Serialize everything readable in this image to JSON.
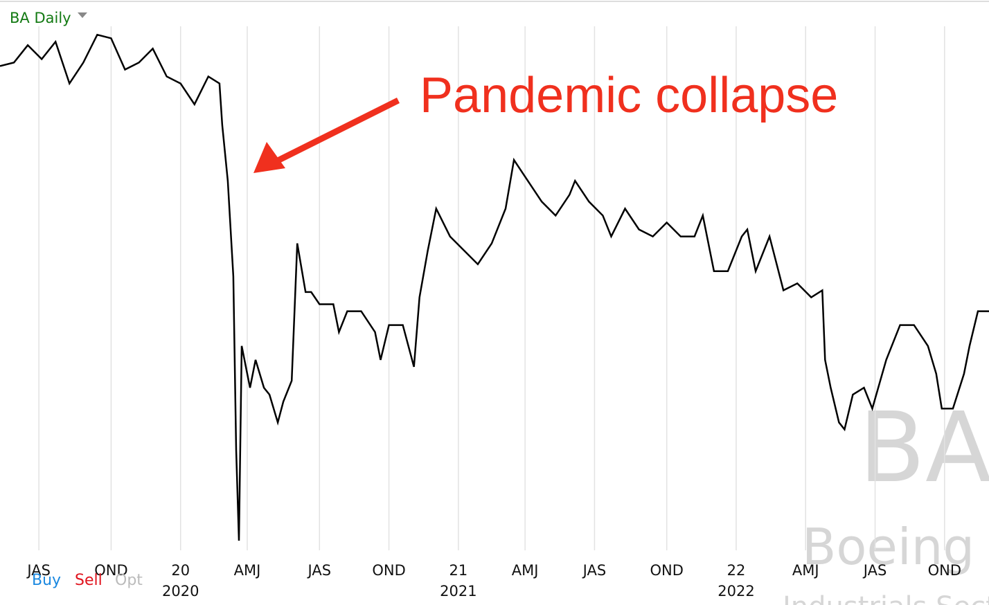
{
  "header": {
    "title": "BA Daily"
  },
  "buttons": [
    "Buy",
    "Sell",
    "Opt"
  ],
  "chart_data": {
    "type": "line",
    "color": "#000000",
    "annotation": "Pandemic collapse",
    "watermark": {
      "symbol": "BA",
      "name": "Boeing Co",
      "sector": "Industrials Sector"
    },
    "xlim": [
      2019.35,
      2022.91
    ],
    "ylim": [
      60,
      408
    ],
    "xticks": [
      {
        "value": 2019.49,
        "label": "JAS"
      },
      {
        "value": 2019.75,
        "label": "OND"
      },
      {
        "value": 2020.0,
        "label": "20"
      },
      {
        "value": 2020.24,
        "label": "AMJ"
      },
      {
        "value": 2020.5,
        "label": "JAS"
      },
      {
        "value": 2020.75,
        "label": "OND"
      },
      {
        "value": 2021.0,
        "label": "21"
      },
      {
        "value": 2021.24,
        "label": "AMJ"
      },
      {
        "value": 2021.49,
        "label": "JAS"
      },
      {
        "value": 2021.75,
        "label": "OND"
      },
      {
        "value": 2022.0,
        "label": "22"
      },
      {
        "value": 2022.25,
        "label": "AMJ"
      },
      {
        "value": 2022.5,
        "label": "JAS"
      },
      {
        "value": 2022.75,
        "label": "OND"
      }
    ],
    "x_year_labels": [
      2020,
      2021,
      2022
    ],
    "x": [
      2019.35,
      2019.4,
      2019.45,
      2019.5,
      2019.55,
      2019.6,
      2019.65,
      2019.7,
      2019.75,
      2019.8,
      2019.85,
      2019.9,
      2019.95,
      2020.0,
      2020.05,
      2020.1,
      2020.14,
      2020.15,
      2020.17,
      2020.19,
      2020.2,
      2020.21,
      2020.22,
      2020.25,
      2020.27,
      2020.3,
      2020.32,
      2020.35,
      2020.37,
      2020.4,
      2020.42,
      2020.45,
      2020.47,
      2020.5,
      2020.55,
      2020.57,
      2020.6,
      2020.65,
      2020.7,
      2020.72,
      2020.75,
      2020.8,
      2020.84,
      2020.86,
      2020.89,
      2020.92,
      2020.97,
      2021.02,
      2021.07,
      2021.12,
      2021.17,
      2021.2,
      2021.25,
      2021.3,
      2021.35,
      2021.4,
      2021.42,
      2021.47,
      2021.52,
      2021.55,
      2021.6,
      2021.65,
      2021.7,
      2021.75,
      2021.8,
      2021.85,
      2021.88,
      2021.92,
      2021.97,
      2022.02,
      2022.04,
      2022.07,
      2022.12,
      2022.17,
      2022.22,
      2022.27,
      2022.31,
      2022.32,
      2022.34,
      2022.37,
      2022.39,
      2022.42,
      2022.46,
      2022.49,
      2022.54,
      2022.59,
      2022.64,
      2022.69,
      2022.72,
      2022.74,
      2022.78,
      2022.82,
      2022.84,
      2022.87,
      2022.91
    ],
    "values": [
      370,
      372,
      382,
      374,
      384,
      360,
      372,
      388,
      386,
      368,
      372,
      380,
      364,
      360,
      348,
      364,
      360,
      336,
      304,
      249,
      149,
      97,
      209,
      185,
      201,
      185,
      181,
      165,
      177,
      189,
      268,
      240,
      240,
      233,
      233,
      217,
      229,
      229,
      217,
      201,
      221,
      221,
      197,
      237,
      264,
      288,
      272,
      264,
      256,
      268,
      288,
      316,
      304,
      292,
      284,
      296,
      304,
      292,
      284,
      272,
      288,
      276,
      272,
      280,
      272,
      272,
      284,
      252,
      252,
      272,
      276,
      252,
      272,
      241,
      245,
      237,
      241,
      201,
      185,
      165,
      161,
      181,
      185,
      173,
      201,
      221,
      221,
      209,
      193,
      173,
      173,
      193,
      209,
      229,
      229
    ]
  }
}
